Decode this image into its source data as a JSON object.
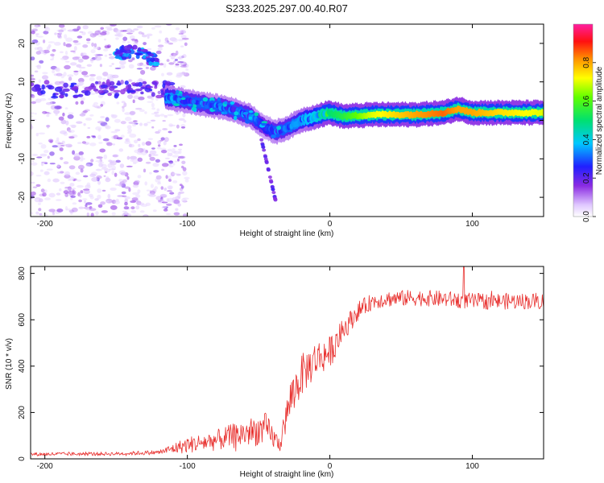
{
  "figure_title": "S233.2025.297.00.40.R07",
  "chart_data": [
    {
      "type": "heatmap",
      "name": "spectrogram",
      "xlabel": "Height of straight line (km)",
      "ylabel": "Frequency (Hz)",
      "xlim": [
        -210,
        150
      ],
      "ylim": [
        -25,
        25
      ],
      "xticks": [
        -200,
        -100,
        0,
        100
      ],
      "yticks": [
        -20,
        -10,
        0,
        10,
        20
      ],
      "colorbar": {
        "label": "Normalized spectral amplitude",
        "range": [
          0.0,
          1.0
        ],
        "ticks": [
          "0.0",
          "0.2",
          "0.4",
          "0.6",
          "0.8"
        ],
        "colormap": "rainbow (white-violet-blue-cyan-green-yellow-orange-red-magenta)"
      },
      "ridge": {
        "description": "dominant frequency ridge (Hz) vs height (km)",
        "x": [
          -115,
          -100,
          -85,
          -70,
          -55,
          -45,
          -38,
          -30,
          -20,
          -10,
          0,
          10,
          30,
          60,
          80,
          90,
          100,
          120,
          150
        ],
        "y": [
          6,
          5,
          4,
          3,
          1,
          -2,
          -3,
          -2,
          0,
          1,
          2,
          1,
          1.5,
          1.5,
          2,
          3,
          2,
          2,
          2
        ],
        "amplitude": [
          0.35,
          0.3,
          0.3,
          0.3,
          0.3,
          0.25,
          0.3,
          0.3,
          0.35,
          0.4,
          0.5,
          0.55,
          0.7,
          0.8,
          0.85,
          0.8,
          0.8,
          0.75,
          0.7
        ]
      },
      "upper_cluster": {
        "description": "secondary band (Hz) at low heights",
        "x": [
          -150,
          -140,
          -130,
          -120
        ],
        "y": [
          17,
          18,
          17,
          15
        ]
      }
    },
    {
      "type": "line",
      "name": "snr",
      "xlabel": "Height of straight line (km)",
      "ylabel": "SNR (10 * v/v)",
      "xlim": [
        -210,
        150
      ],
      "ylim": [
        0,
        830
      ],
      "xticks": [
        -200,
        -100,
        0,
        100
      ],
      "yticks": [
        0,
        200,
        400,
        600,
        800
      ],
      "color": "#e8312f",
      "series_envelope": {
        "x": [
          -210,
          -150,
          -120,
          -100,
          -80,
          -60,
          -45,
          -35,
          -28,
          -20,
          -10,
          0,
          10,
          20,
          30,
          40,
          60,
          80,
          100,
          120,
          150
        ],
        "y": [
          20,
          22,
          28,
          60,
          80,
          110,
          130,
          60,
          250,
          360,
          430,
          460,
          560,
          640,
          680,
          690,
          695,
          690,
          680,
          680,
          680
        ],
        "noise": [
          8,
          8,
          10,
          35,
          45,
          60,
          70,
          30,
          90,
          90,
          80,
          70,
          50,
          40,
          35,
          35,
          35,
          35,
          35,
          35,
          35
        ]
      },
      "peak": {
        "x": 94,
        "y": 830
      }
    }
  ]
}
